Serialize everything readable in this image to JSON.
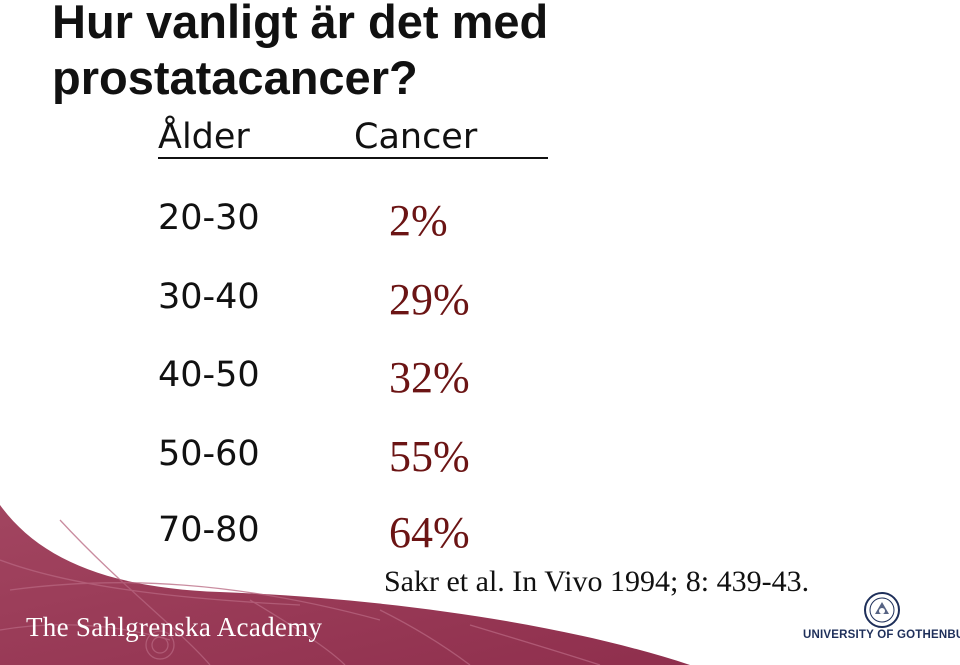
{
  "slide": {
    "title": "Hur vanligt är det med prostatacancer?",
    "table": {
      "col_age": "Ålder",
      "col_cancer": "Cancer",
      "rows": [
        {
          "age": "20-30",
          "pct": "2%"
        },
        {
          "age": "30-40",
          "pct": "29%"
        },
        {
          "age": "40-50",
          "pct": "32%"
        },
        {
          "age": "50-60",
          "pct": "55%"
        },
        {
          "age": "70-80",
          "pct": "64%"
        }
      ]
    },
    "citation": "Sakr et al. In Vivo 1994; 8: 439-43.",
    "footer": {
      "academy": "The Sahlgrenska Academy",
      "university": "UNIVERSITY OF GOTHENBURG"
    },
    "colors": {
      "banner": "#9b3856",
      "percent_text": "#6b1414",
      "university_text": "#1e2f5a"
    }
  }
}
